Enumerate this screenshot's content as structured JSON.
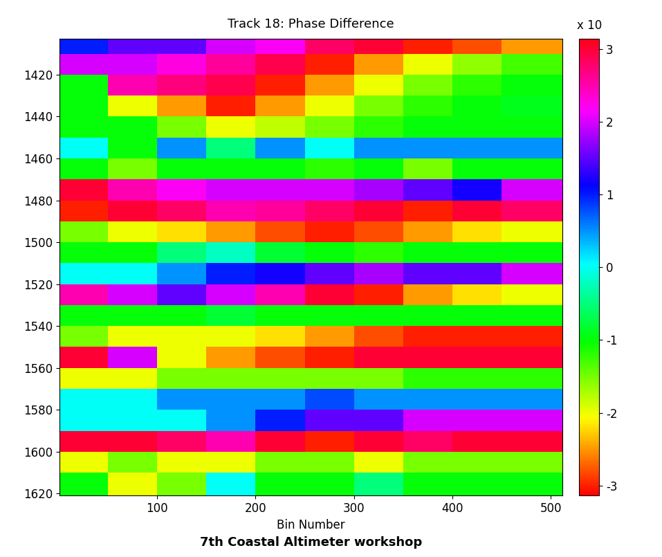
{
  "chart_data": {
    "type": "heatmap",
    "title": "Track 18: Phase Difference",
    "x_label": "Bin Number",
    "x_edges": [
      1,
      50,
      100,
      150,
      200,
      250,
      300,
      350,
      400,
      450,
      512
    ],
    "y_edges": [
      1403,
      1410,
      1420,
      1430,
      1440,
      1450,
      1460,
      1470,
      1480,
      1490,
      1500,
      1510,
      1520,
      1530,
      1540,
      1550,
      1560,
      1570,
      1580,
      1590,
      1600,
      1610,
      1621
    ],
    "cells": [
      [
        1,
        1.5,
        1.5,
        2,
        2.2,
        2.8,
        3,
        -3,
        -2.8,
        -2.5
      ],
      [
        2,
        2,
        2.3,
        2.6,
        2.9,
        -3,
        -2.5,
        -2,
        -1.6,
        -1.3
      ],
      [
        -1,
        2.5,
        2.7,
        2.9,
        -3,
        -2.5,
        -2,
        -1.5,
        -1.2,
        -1
      ],
      [
        -1,
        -2,
        -2.5,
        -3,
        -2.5,
        -2,
        -1.5,
        -1.2,
        -1,
        -0.9
      ],
      [
        -1,
        -1,
        -1.5,
        -2,
        -1.8,
        -1.5,
        -1.2,
        -1,
        -1,
        -1
      ],
      [
        0,
        -1,
        0.5,
        -0.5,
        0.5,
        0,
        0.5,
        0.5,
        0.5,
        0.5
      ],
      [
        -1,
        -1.5,
        -1,
        -1,
        -1,
        -1.2,
        -1,
        -1.5,
        -1,
        -1
      ],
      [
        3,
        2.5,
        2.2,
        2,
        2,
        2,
        1.8,
        1.5,
        1.2,
        2
      ],
      [
        -3,
        3,
        2.8,
        2.5,
        2.6,
        2.8,
        3,
        -3,
        3,
        2.8
      ],
      [
        -1.5,
        -2,
        -2.2,
        -2.5,
        -2.8,
        -3,
        -2.8,
        -2.5,
        -2.2,
        -2
      ],
      [
        -1,
        -1,
        -0.5,
        -0.2,
        -0.8,
        -1,
        -1.2,
        -1,
        -1,
        -1
      ],
      [
        0,
        0,
        0.5,
        1,
        1.2,
        1.5,
        1.8,
        1.5,
        1.5,
        2
      ],
      [
        2.5,
        2,
        1.5,
        2,
        2.5,
        3,
        -3,
        -2.5,
        -2.2,
        -2
      ],
      [
        -1,
        -1,
        -1,
        -0.8,
        -1,
        -1,
        -1,
        -1,
        -1,
        -1
      ],
      [
        -1.5,
        -2,
        -2,
        -2,
        -2.2,
        -2.5,
        -2.8,
        -3,
        -3,
        -3
      ],
      [
        3,
        2,
        -2,
        -2.5,
        -2.8,
        -3,
        3,
        3,
        3,
        3
      ],
      [
        -2,
        -2,
        -1.5,
        -1.5,
        -1.5,
        -1.5,
        -1.5,
        -1.2,
        -1.2,
        -1.2
      ],
      [
        0,
        0,
        0.5,
        0.5,
        0.5,
        0.8,
        0.5,
        0.5,
        0.5,
        0.5
      ],
      [
        0,
        0,
        0,
        0.5,
        1,
        1.5,
        1.5,
        2,
        2,
        2
      ],
      [
        3,
        3,
        2.8,
        2.5,
        3,
        -3,
        3,
        2.8,
        3,
        3
      ],
      [
        -2,
        -1.5,
        -2,
        -2,
        -1.5,
        -1.5,
        -2,
        -1.5,
        -1.5,
        -1.5
      ],
      [
        -1,
        -2,
        -1.5,
        0,
        -1,
        -1,
        -0.5,
        -1,
        -1,
        -1
      ]
    ],
    "xlim": [
      1,
      512
    ],
    "xticks": [
      100,
      200,
      300,
      400,
      500
    ],
    "ylim": [
      1621,
      1403
    ],
    "yticks": [
      1420,
      1440,
      1460,
      1480,
      1500,
      1520,
      1540,
      1560,
      1580,
      1600,
      1620
    ],
    "colorbar": {
      "range": [
        -3.1416,
        3.1416
      ],
      "ticks": [
        -3,
        -2,
        -1,
        0,
        1,
        2,
        3
      ],
      "label": "x 10"
    },
    "annotations": [
      "7th Coastal Altimeter workshop"
    ]
  }
}
